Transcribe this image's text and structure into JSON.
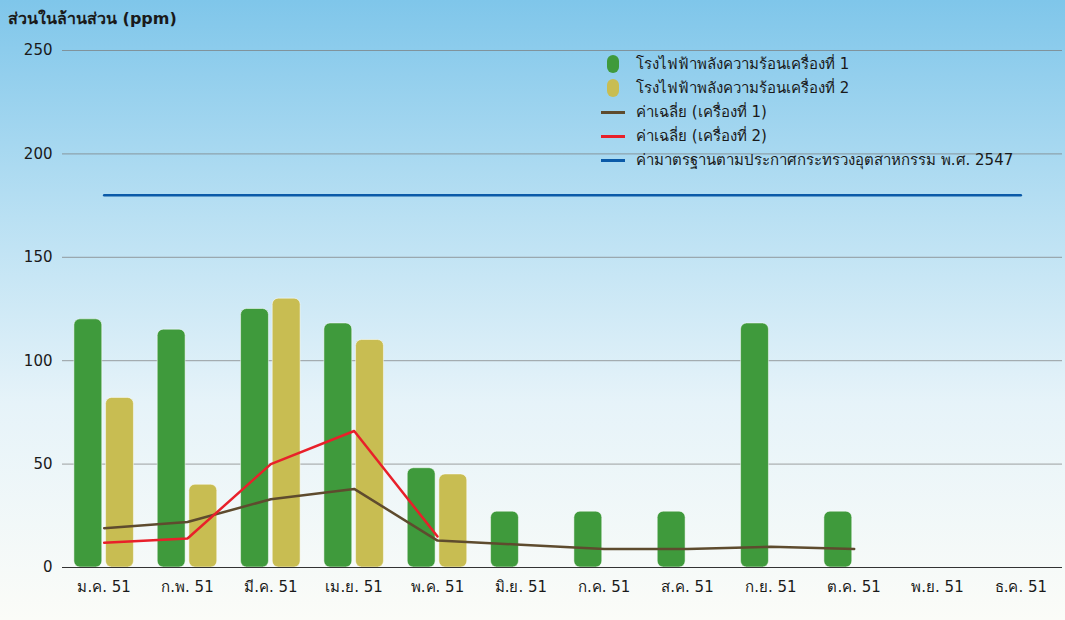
{
  "chart_data": {
    "type": "bar",
    "y_label": "ส่วนในล้านส่วน (ppm)",
    "categories": [
      "ม.ค. 51",
      "ก.พ. 51",
      "มี.ค. 51",
      "เม.ย. 51",
      "พ.ค. 51",
      "มิ.ย. 51",
      "ก.ค. 51",
      "ส.ค. 51",
      "ก.ย. 51",
      "ต.ค. 51",
      "พ.ย. 51",
      "ธ.ค. 51"
    ],
    "series": [
      {
        "name": "โรงไฟฟ้าพลังความร้อนเครื่องที่ 1",
        "type": "bar",
        "color": "#3f9a3c",
        "values": [
          120,
          115,
          125,
          118,
          48,
          27,
          27,
          27,
          118,
          27,
          null,
          null
        ]
      },
      {
        "name": "โรงไฟฟ้าพลังความร้อนเครื่องที่ 2",
        "type": "bar",
        "color": "#c8bd52",
        "values": [
          82,
          40,
          130,
          110,
          45,
          null,
          null,
          null,
          null,
          null,
          null,
          null
        ]
      },
      {
        "name": "ค่าเฉลี่ย (เครื่องที่ 1)",
        "type": "line",
        "color": "#5e4b2e",
        "values": [
          19,
          22,
          33,
          38,
          13,
          11,
          9,
          9,
          10,
          9,
          null,
          null
        ]
      },
      {
        "name": "ค่าเฉลี่ย (เครื่องที่ 2)",
        "type": "line",
        "color": "#e8202a",
        "values": [
          12,
          14,
          50,
          66,
          15,
          null,
          null,
          null,
          null,
          null,
          null,
          null
        ]
      },
      {
        "name": "ค่ามาตรฐานตามประกาศกระทรวงอุตสาหกรรม พ.ศ. 2547",
        "type": "line",
        "color": "#0b5aa8",
        "values": [
          180,
          180,
          180,
          180,
          180,
          180,
          180,
          180,
          180,
          180,
          180,
          180
        ]
      }
    ],
    "ylim": [
      0,
      250
    ],
    "yticks": [
      0,
      50,
      100,
      150,
      200,
      250
    ],
    "grid": true,
    "legend": "top-right"
  }
}
